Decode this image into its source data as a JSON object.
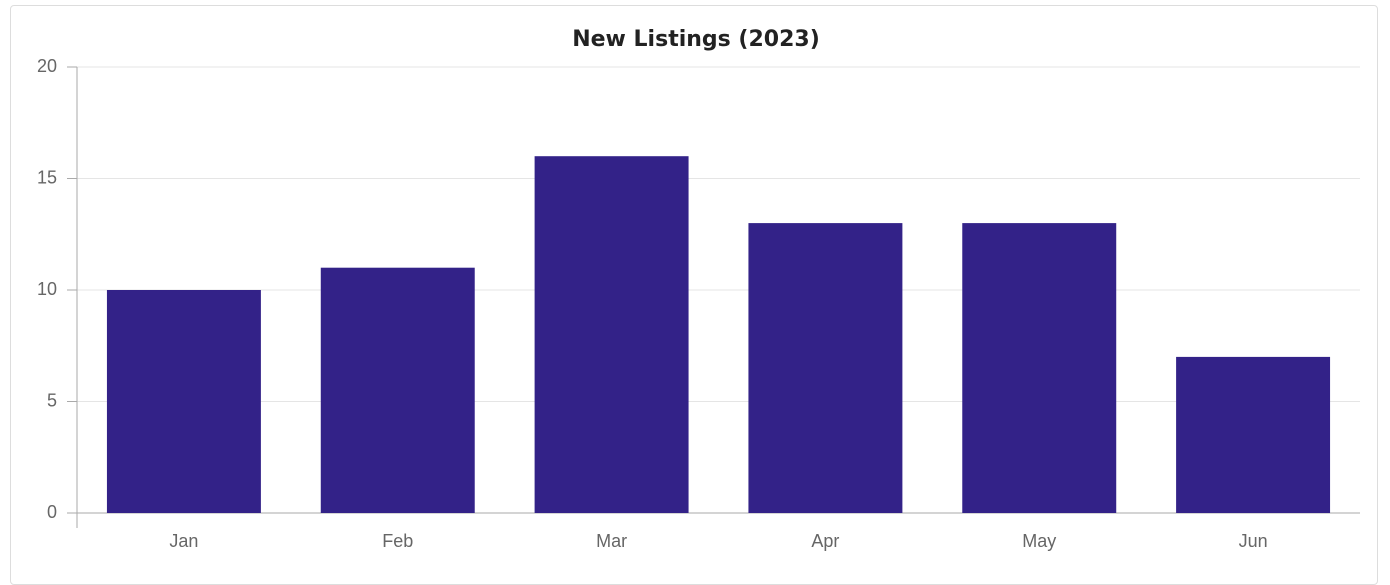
{
  "chart_data": {
    "type": "bar",
    "title": "New Listings (2023)",
    "categories": [
      "Jan",
      "Feb",
      "Mar",
      "Apr",
      "May",
      "Jun"
    ],
    "values": [
      10,
      11,
      16,
      13,
      13,
      7
    ],
    "color": "#332288",
    "ylim": [
      0,
      20
    ],
    "yticks": [
      0,
      5,
      10,
      15,
      20
    ],
    "grid": true
  }
}
